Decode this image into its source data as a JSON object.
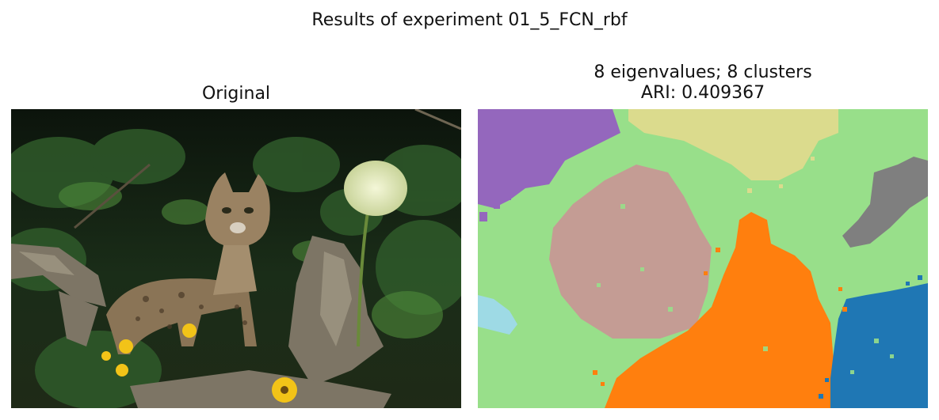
{
  "figure": {
    "suptitle": "Results of experiment 01_5_FCN_rbf"
  },
  "panels": {
    "left": {
      "title": "Original",
      "image_description": "bobcat standing among logs with flowers"
    },
    "right": {
      "title_line1": "8 eigenvalues; 8 clusters",
      "title_line2": "ARI: 0.409367",
      "image_description": "segmentation map",
      "cluster_colors": {
        "cluster_0": "#1f77b4",
        "cluster_1": "#ff7f0e",
        "cluster_2": "#98df8a",
        "cluster_3": "#9467bd",
        "cluster_4": "#c49c94",
        "cluster_5": "#7f7f7f",
        "cluster_6": "#dbdb8d",
        "cluster_7": "#9edae5"
      }
    }
  }
}
